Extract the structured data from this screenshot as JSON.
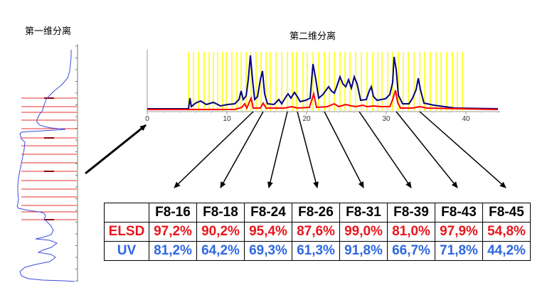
{
  "labels": {
    "first_dimension": "第一维分离",
    "second_dimension": "第二维分离"
  },
  "chromatogram": {
    "x_ticks": [
      "0",
      "10",
      "20",
      "30",
      "40"
    ],
    "colors": {
      "blue": "#00007f",
      "red": "#ff0000",
      "yellow": "#ffff00"
    }
  },
  "table": {
    "columns": [
      "F8-16",
      "F8-18",
      "F8-24",
      "F8-26",
      "F8-31",
      "F8-39",
      "F8-43",
      "F8-45"
    ],
    "rows": [
      {
        "label": "ELSD",
        "values": [
          "97,2%",
          "90,2%",
          "95,4%",
          "87,6%",
          "99,0%",
          "81,0%",
          "97,9%",
          "54,8%"
        ],
        "color": "#e8161b"
      },
      {
        "label": "UV",
        "values": [
          "81,2%",
          "64,2%",
          "69,3%",
          "61,3%",
          "91,8%",
          "66,7%",
          "71,8%",
          "44,2%"
        ],
        "color": "#2f67e0"
      }
    ]
  }
}
